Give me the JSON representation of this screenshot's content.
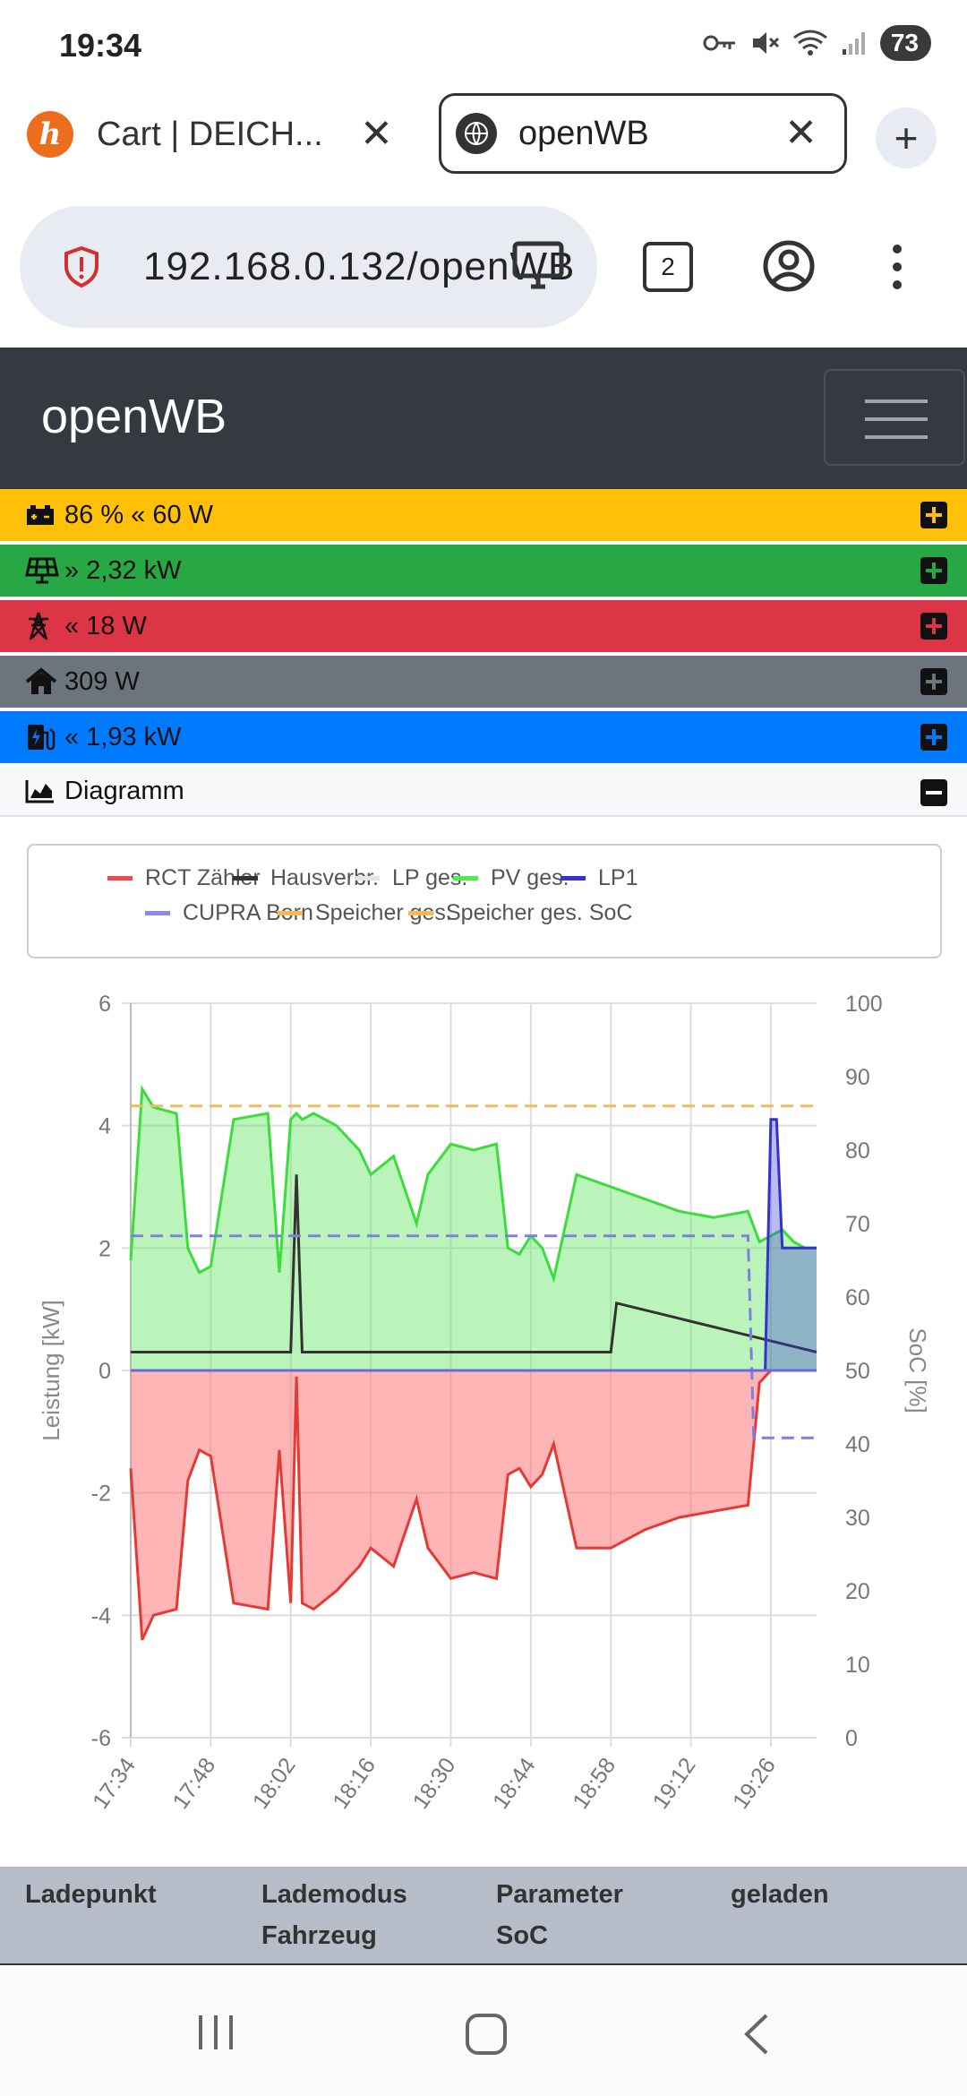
{
  "status": {
    "time": "19:34",
    "battery": "73"
  },
  "tabs": [
    {
      "title": "Cart | DEICH...",
      "favicon_letter": "h",
      "close": "✕"
    },
    {
      "title": "openWB",
      "close": "✕"
    }
  ],
  "new_tab": "+",
  "address": {
    "url": "192.168.0.132/openWB",
    "tab_count": "2"
  },
  "app": {
    "brand": "openWB"
  },
  "rows": {
    "battery": "86 % « 60 W",
    "pv": "» 2,32 kW",
    "grid": "« 18 W",
    "house": "309 W",
    "charge": "« 1,93 kW",
    "diagram": "Diagramm"
  },
  "colors": {
    "battery": "#ffc107",
    "pv": "#28a745",
    "grid": "#dc3545",
    "house": "#6c757d",
    "charge": "#007bff"
  },
  "chart_data": {
    "type": "area",
    "legend": [
      "RCT Zähler",
      "Hausverbr.",
      "LP ges.",
      "PV ges.",
      "LP1",
      "CUPRA Born",
      "Speicher ges.",
      "Speicher ges. SoC"
    ],
    "legend_colors": [
      "#e84c4c",
      "#333333",
      "#e5e5e5",
      "#55e655",
      "#3333cc",
      "#8888ee",
      "#f5b85a",
      "#f5b85a"
    ],
    "x_ticks": [
      "17:34",
      "17:48",
      "18:02",
      "18:16",
      "18:30",
      "18:44",
      "18:58",
      "19:12",
      "19:26"
    ],
    "y_ticks": [
      "6",
      "4",
      "2",
      "0",
      "-2",
      "-4",
      "-6"
    ],
    "y2_ticks": [
      "100",
      "90",
      "80",
      "70",
      "60",
      "50",
      "40",
      "30",
      "20",
      "10",
      "0"
    ],
    "ylabel": "Leistung [kW]",
    "y2label": "SoC [%]",
    "ylim": [
      -6,
      6
    ],
    "y2lim": [
      0,
      100
    ],
    "grid": true,
    "legend_position": "top",
    "series": [
      {
        "name": "PV ges.",
        "x": [
          "17:34",
          "17:36",
          "17:38",
          "17:42",
          "17:44",
          "17:46",
          "17:48",
          "17:52",
          "17:58",
          "18:00",
          "18:02",
          "18:03",
          "18:04",
          "18:06",
          "18:10",
          "18:14",
          "18:16",
          "18:20",
          "18:24",
          "18:26",
          "18:30",
          "18:34",
          "18:38",
          "18:40",
          "18:42",
          "18:44",
          "18:46",
          "18:48",
          "18:52",
          "18:58",
          "19:04",
          "19:10",
          "19:16",
          "19:22",
          "19:24",
          "19:26",
          "19:28",
          "19:30",
          "19:32",
          "19:34"
        ],
        "values": [
          1.8,
          4.6,
          4.3,
          4.2,
          2.0,
          1.6,
          1.7,
          4.1,
          4.2,
          1.6,
          4.1,
          4.2,
          4.1,
          4.2,
          4.0,
          3.6,
          3.2,
          3.5,
          2.4,
          3.2,
          3.7,
          3.6,
          3.7,
          2.0,
          1.9,
          2.2,
          2.0,
          1.5,
          3.2,
          3.0,
          2.8,
          2.6,
          2.5,
          2.6,
          2.1,
          2.2,
          2.3,
          2.1,
          2.0,
          2.0
        ]
      },
      {
        "name": "RCT Zähler",
        "x": [
          "17:34",
          "17:36",
          "17:38",
          "17:42",
          "17:44",
          "17:46",
          "17:48",
          "17:52",
          "17:58",
          "18:00",
          "18:02",
          "18:03",
          "18:04",
          "18:06",
          "18:10",
          "18:14",
          "18:16",
          "18:20",
          "18:24",
          "18:26",
          "18:30",
          "18:34",
          "18:38",
          "18:40",
          "18:42",
          "18:44",
          "18:46",
          "18:48",
          "18:52",
          "18:58",
          "19:04",
          "19:10",
          "19:16",
          "19:22",
          "19:24",
          "19:26",
          "19:28",
          "19:30",
          "19:32",
          "19:34"
        ],
        "values": [
          -1.6,
          -4.4,
          -4.0,
          -3.9,
          -1.8,
          -1.3,
          -1.4,
          -3.8,
          -3.9,
          -1.3,
          -3.8,
          -0.1,
          -3.8,
          -3.9,
          -3.6,
          -3.2,
          -2.9,
          -3.2,
          -2.1,
          -2.9,
          -3.4,
          -3.3,
          -3.4,
          -1.7,
          -1.6,
          -1.9,
          -1.7,
          -1.2,
          -2.9,
          -2.9,
          -2.6,
          -2.4,
          -2.3,
          -2.2,
          -0.2,
          0.0,
          0.0,
          0.0,
          0.0,
          0.0
        ]
      },
      {
        "name": "Hausverbr.",
        "x": [
          "17:34",
          "18:02",
          "18:03",
          "18:04",
          "18:58",
          "18:59",
          "19:34"
        ],
        "values": [
          0.3,
          0.3,
          3.2,
          0.3,
          0.3,
          1.1,
          0.3
        ]
      },
      {
        "name": "LP1",
        "x": [
          "19:25",
          "19:26",
          "19:27",
          "19:28",
          "19:34"
        ],
        "values": [
          0.0,
          4.1,
          4.1,
          2.0,
          2.0
        ]
      },
      {
        "name": "CUPRA Born",
        "x": [
          "17:34",
          "19:22",
          "19:23",
          "19:34"
        ],
        "values": [
          2.2,
          2.2,
          -1.1,
          -1.1
        ]
      },
      {
        "name": "Speicher ges. SoC",
        "x": [
          "17:34",
          "19:34"
        ],
        "values": [
          86,
          86
        ]
      }
    ]
  },
  "table": {
    "headers": [
      "Ladepunkt",
      "Lademodus",
      "Fahrzeug",
      "Parameter",
      "SoC",
      "geladen"
    ]
  }
}
